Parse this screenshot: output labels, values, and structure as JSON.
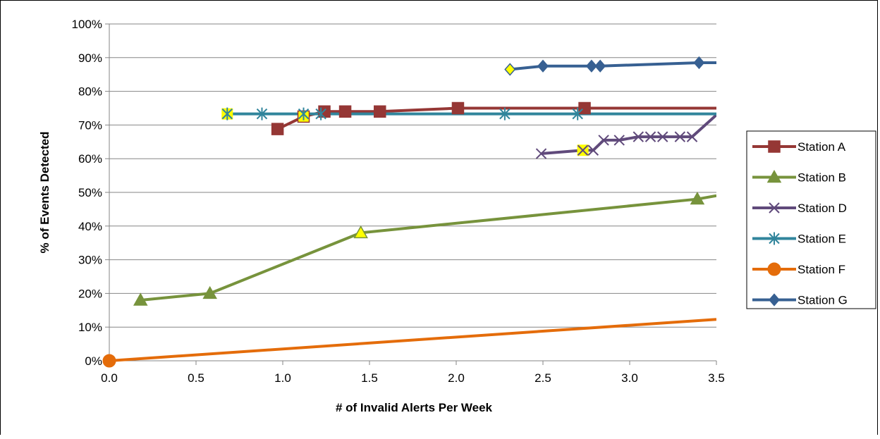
{
  "chart_data": {
    "type": "line",
    "title": "",
    "xlabel": "# of Invalid Alerts Per Week",
    "ylabel": "% of Events Detected",
    "xlim": [
      0,
      3.5
    ],
    "ylim": [
      0,
      100
    ],
    "x_ticks": [
      "0.0",
      "0.5",
      "1.0",
      "1.5",
      "2.0",
      "2.5",
      "3.0",
      "3.5"
    ],
    "x_tick_values": [
      0,
      0.5,
      1.0,
      1.5,
      2.0,
      2.5,
      3.0,
      3.5
    ],
    "y_ticks": [
      "0%",
      "10%",
      "20%",
      "30%",
      "40%",
      "50%",
      "60%",
      "70%",
      "80%",
      "90%",
      "100%"
    ],
    "y_tick_values": [
      0,
      10,
      20,
      30,
      40,
      50,
      60,
      70,
      80,
      90,
      100
    ],
    "grid": "horizontal",
    "legend_position": "right",
    "series": [
      {
        "name": "Station A",
        "color": "#953735",
        "marker": "square",
        "points": [
          [
            0.97,
            68.8
          ],
          [
            1.12,
            72.5
          ],
          [
            1.24,
            74
          ],
          [
            1.36,
            74
          ],
          [
            1.56,
            74
          ],
          [
            2.01,
            75
          ],
          [
            2.74,
            75
          ],
          [
            3.5,
            75
          ]
        ],
        "highlight": [
          1
        ]
      },
      {
        "name": "Station B",
        "color": "#77933C",
        "marker": "triangle",
        "points": [
          [
            0.18,
            18
          ],
          [
            0.58,
            20
          ],
          [
            1.45,
            38
          ],
          [
            3.39,
            48
          ],
          [
            3.5,
            49
          ]
        ],
        "highlight": [
          2
        ]
      },
      {
        "name": "Station D",
        "color": "#604A7B",
        "marker": "x",
        "points": [
          [
            2.49,
            61.5
          ],
          [
            2.73,
            62.5
          ],
          [
            2.79,
            62.5
          ],
          [
            2.85,
            65.5
          ],
          [
            2.94,
            65.5
          ],
          [
            3.05,
            66.5
          ],
          [
            3.12,
            66.5
          ],
          [
            3.19,
            66.5
          ],
          [
            3.29,
            66.5
          ],
          [
            3.36,
            66.5
          ],
          [
            3.5,
            73
          ]
        ],
        "highlight": [
          1
        ]
      },
      {
        "name": "Station E",
        "color": "#31859C",
        "marker": "asterisk",
        "points": [
          [
            0.68,
            73.3
          ],
          [
            0.88,
            73.3
          ],
          [
            1.12,
            73.3
          ],
          [
            1.22,
            73.3
          ],
          [
            2.28,
            73.3
          ],
          [
            2.7,
            73.3
          ],
          [
            3.5,
            73.3
          ]
        ],
        "highlight": [
          0
        ]
      },
      {
        "name": "Station F",
        "color": "#E46C0A",
        "marker": "circle",
        "points": [
          [
            0,
            0
          ],
          [
            3.5,
            12.3
          ]
        ],
        "highlight": []
      },
      {
        "name": "Station G",
        "color": "#376092",
        "marker": "diamond",
        "points": [
          [
            2.31,
            86.5
          ],
          [
            2.5,
            87.5
          ],
          [
            2.78,
            87.5
          ],
          [
            2.83,
            87.5
          ],
          [
            3.4,
            88.5
          ],
          [
            3.5,
            88.5
          ]
        ],
        "highlight": [
          0
        ]
      }
    ]
  },
  "colors": {
    "highlight_marker_fill": "#FFFF00",
    "gridline": "#868686",
    "axis": "#868686"
  }
}
